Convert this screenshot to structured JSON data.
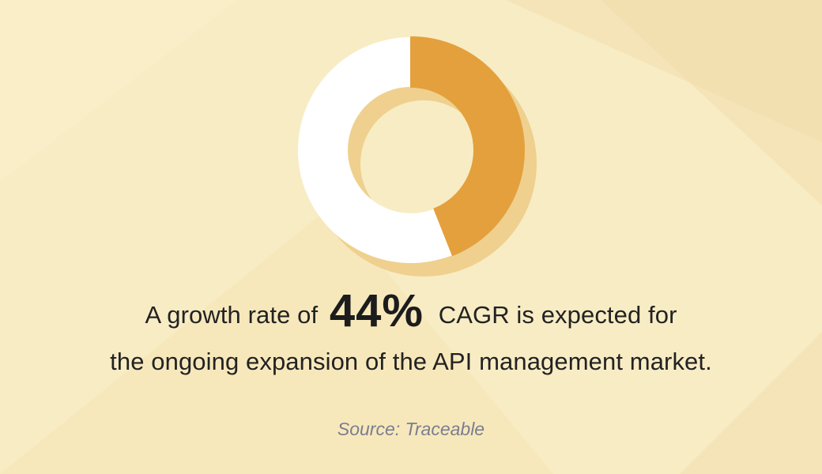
{
  "chart_data": {
    "type": "pie",
    "subtype": "donut",
    "values": [
      44,
      56
    ],
    "highlight_value": 44,
    "colors": {
      "highlight": "#e4a03c",
      "remainder": "#ffffff",
      "shadow": "#efd08e",
      "background": "#f8ecc4"
    }
  },
  "headline": {
    "part1": "A growth rate of",
    "value": "44%",
    "part2": "CAGR is expected for",
    "line2": "the ongoing expansion of the API management market."
  },
  "source": "Source: Traceable"
}
